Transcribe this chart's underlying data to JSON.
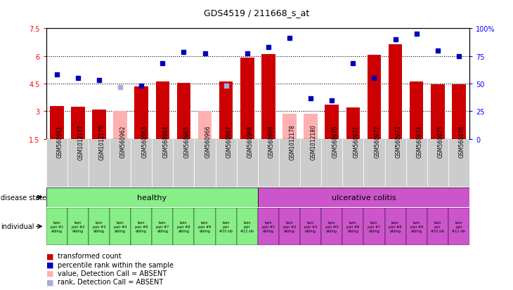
{
  "title": "GDS4519 / 211668_s_at",
  "samples": [
    "GSM560961",
    "GSM1012177",
    "GSM1012179",
    "GSM560962",
    "GSM560963",
    "GSM560964",
    "GSM560965",
    "GSM560966",
    "GSM560967",
    "GSM560968",
    "GSM560969",
    "GSM1012178",
    "GSM1012180",
    "GSM560970",
    "GSM560971",
    "GSM560972",
    "GSM560973",
    "GSM560974",
    "GSM560975",
    "GSM560976"
  ],
  "bar_values": [
    3.3,
    3.25,
    3.1,
    3.0,
    4.35,
    4.6,
    4.55,
    3.0,
    4.6,
    5.92,
    6.1,
    2.88,
    2.88,
    3.35,
    3.2,
    6.05,
    6.62,
    4.6,
    4.45,
    4.45
  ],
  "bar_absent": [
    false,
    false,
    false,
    true,
    false,
    false,
    false,
    true,
    false,
    false,
    false,
    true,
    true,
    false,
    false,
    false,
    false,
    false,
    false,
    false
  ],
  "dot_values": [
    5.0,
    4.8,
    4.7,
    4.3,
    4.4,
    5.6,
    6.2,
    6.15,
    4.4,
    6.15,
    6.5,
    7.0,
    3.7,
    3.6,
    5.6,
    4.8,
    6.9,
    7.2,
    6.3,
    6.0
  ],
  "dot_absent": [
    false,
    false,
    false,
    true,
    false,
    false,
    false,
    false,
    true,
    false,
    false,
    false,
    false,
    false,
    false,
    false,
    false,
    false,
    false,
    false
  ],
  "disease_state": [
    "healthy",
    "healthy",
    "healthy",
    "healthy",
    "healthy",
    "healthy",
    "healthy",
    "healthy",
    "healthy",
    "healthy",
    "ulcerative colitis",
    "ulcerative colitis",
    "ulcerative colitis",
    "ulcerative colitis",
    "ulcerative colitis",
    "ulcerative colitis",
    "ulcerative colitis",
    "ulcerative colitis",
    "ulcerative colitis",
    "ulcerative colitis"
  ],
  "individual_labels": [
    "twin\npair #1\nsibling",
    "twin\npair #2\nsibling",
    "twin\npair #3\nsibling",
    "twin\npair #4\nsibling",
    "twin\npair #6\nsibling",
    "twin\npair #7\nsibling",
    "twin\npair #8\nsibling",
    "twin\npair #9\nsibling",
    "twin\npair\n#10 sib",
    "twin\npair\n#12 sib",
    "twin\npair #1\nsibling",
    "twin\npair #2\nsibling",
    "twin\npair #3\nsibling",
    "twin\npair #4\nsibling",
    "twin\npair #6\nsibling",
    "twin\npair #7\nsibling",
    "twin\npair #8\nsibling",
    "twin\npair #9\nsibling",
    "twin\npair\n#10 sib",
    "twin\npair\n#12 sib"
  ],
  "ylim_left": [
    1.5,
    7.5
  ],
  "ylim_right": [
    0,
    100
  ],
  "yticks_left": [
    1.5,
    3.0,
    4.5,
    6.0,
    7.5
  ],
  "ytick_labels_left": [
    "1.5",
    "3",
    "4.5",
    "6",
    "7.5"
  ],
  "yticks_right": [
    0,
    25,
    50,
    75,
    100
  ],
  "ytick_labels_right": [
    "0",
    "25",
    "50",
    "75",
    "100%"
  ],
  "hlines": [
    3.0,
    4.5,
    6.0
  ],
  "bar_color": "#cc0000",
  "bar_absent_color": "#ffb0b0",
  "dot_color": "#0000bb",
  "dot_absent_color": "#aaaadd",
  "healthy_color": "#88ee88",
  "uc_color": "#cc55cc",
  "sample_bg_color": "#cccccc",
  "bar_width": 0.65,
  "healthy_count": 10,
  "uc_count": 10
}
